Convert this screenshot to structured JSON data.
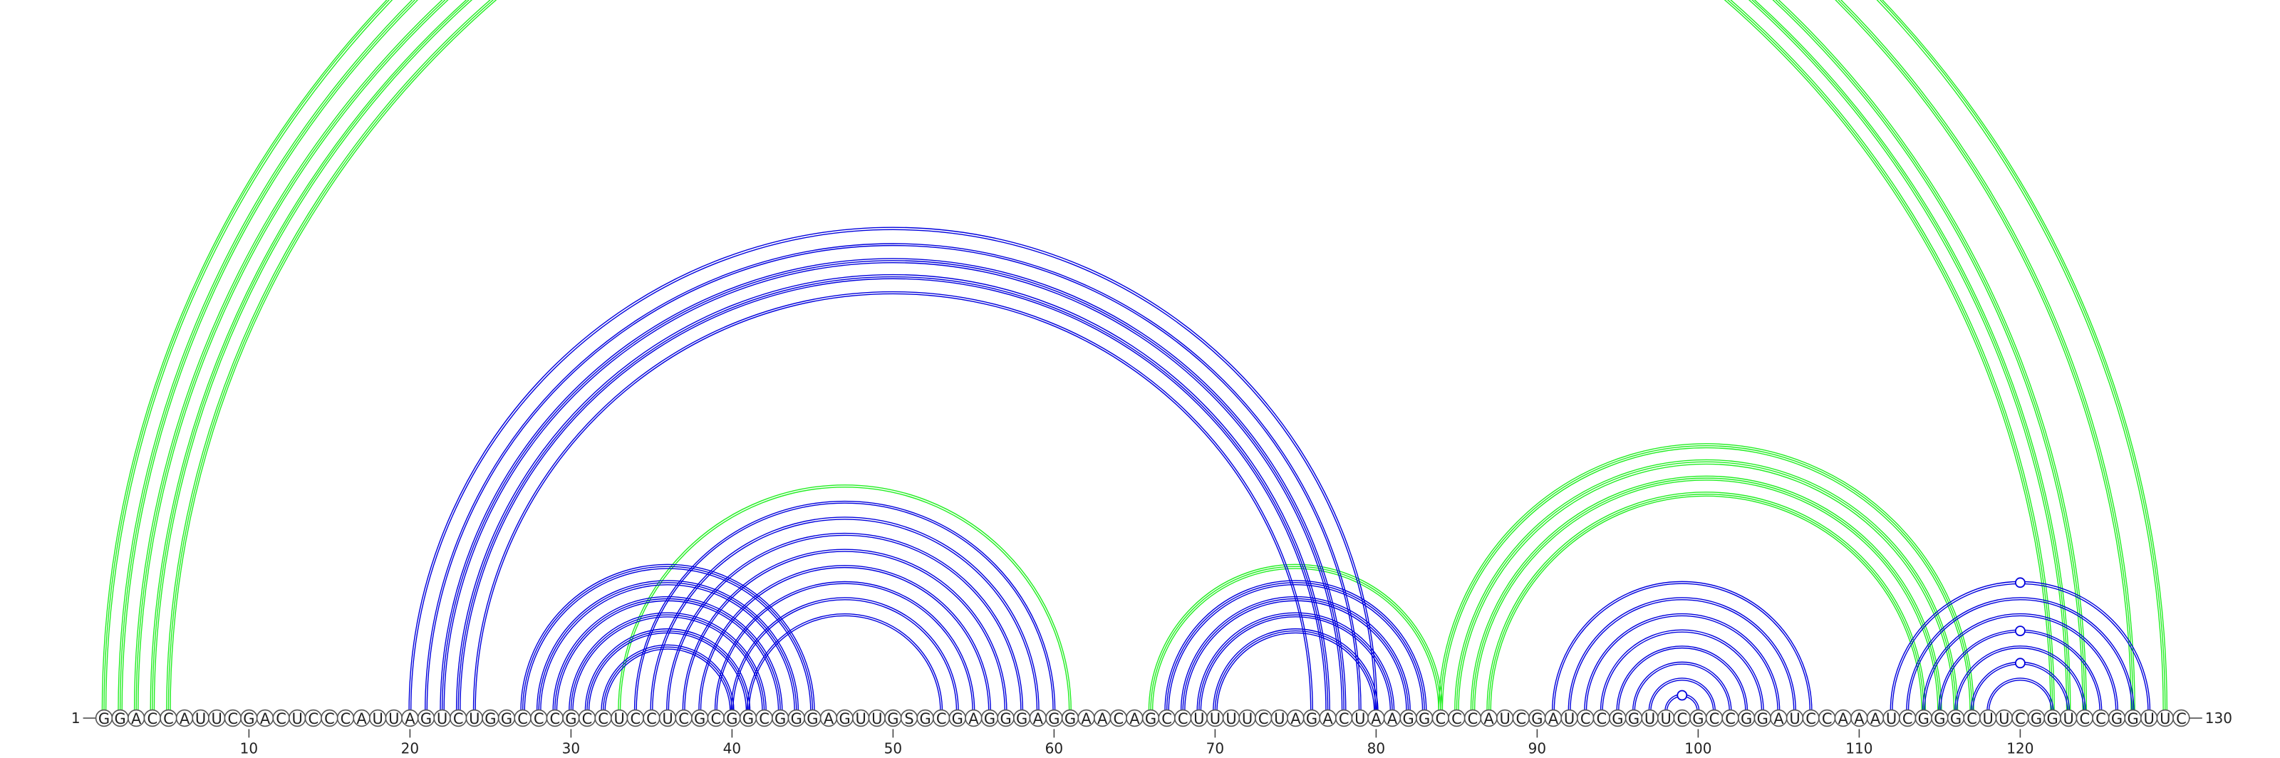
{
  "sequence": "GGACCAUUCGACUCCCAUUAGUCUGGCCCGCCUCCUCGCGGCGGGAGUUGSGCGAGGGAGGAACAGCCUUUUCUAGACUAAGGCCCAUCGAUCCGGUUCGCCGGAUCCAAAUCGGGCUUCGGUCCGGUUC",
  "start_label": "1",
  "end_label": "130",
  "ticks": [
    {
      "pos": 10,
      "label": "10"
    },
    {
      "pos": 20,
      "label": "20"
    },
    {
      "pos": 30,
      "label": "30"
    },
    {
      "pos": 40,
      "label": "40"
    },
    {
      "pos": 50,
      "label": "50"
    },
    {
      "pos": 60,
      "label": "60"
    },
    {
      "pos": 70,
      "label": "70"
    },
    {
      "pos": 80,
      "label": "80"
    },
    {
      "pos": 90,
      "label": "90"
    },
    {
      "pos": 100,
      "label": "100"
    },
    {
      "pos": 110,
      "label": "110"
    },
    {
      "pos": 120,
      "label": "120"
    }
  ],
  "colors": {
    "primary_arc": "#0000dd",
    "alternative_arc": "#22ee22",
    "backbone": "#555555"
  },
  "arcs": [
    {
      "i": 1,
      "j": 129,
      "set": "alternative",
      "bundle": 3
    },
    {
      "i": 2,
      "j": 127,
      "set": "alternative",
      "bundle": 3
    },
    {
      "i": 3,
      "j": 124,
      "set": "alternative",
      "bundle": 3
    },
    {
      "i": 4,
      "j": 123,
      "set": "alternative",
      "bundle": 3
    },
    {
      "i": 5,
      "j": 122,
      "set": "alternative",
      "bundle": 3
    },
    {
      "i": 33,
      "j": 61,
      "set": "alternative",
      "bundle": 2
    },
    {
      "i": 66,
      "j": 84,
      "set": "alternative",
      "bundle": 3
    },
    {
      "i": 84,
      "j": 117,
      "set": "alternative",
      "bundle": 3
    },
    {
      "i": 85,
      "j": 116,
      "set": "alternative",
      "bundle": 3
    },
    {
      "i": 86,
      "j": 115,
      "set": "alternative",
      "bundle": 3
    },
    {
      "i": 87,
      "j": 114,
      "set": "alternative",
      "bundle": 3
    },
    {
      "i": 20,
      "j": 80,
      "set": "primary",
      "bundle": 2
    },
    {
      "i": 21,
      "j": 79,
      "set": "primary",
      "bundle": 2
    },
    {
      "i": 22,
      "j": 78,
      "set": "primary",
      "bundle": 3
    },
    {
      "i": 23,
      "j": 77,
      "set": "primary",
      "bundle": 3
    },
    {
      "i": 24,
      "j": 76,
      "set": "primary",
      "bundle": 2
    },
    {
      "i": 27,
      "j": 45,
      "set": "primary",
      "bundle": 3
    },
    {
      "i": 28,
      "j": 44,
      "set": "primary",
      "bundle": 3
    },
    {
      "i": 29,
      "j": 43,
      "set": "primary",
      "bundle": 3
    },
    {
      "i": 30,
      "j": 42,
      "set": "primary",
      "bundle": 3
    },
    {
      "i": 31,
      "j": 41,
      "set": "primary",
      "bundle": 3
    },
    {
      "i": 32,
      "j": 40,
      "set": "primary",
      "bundle": 3
    },
    {
      "i": 34,
      "j": 60,
      "set": "primary",
      "bundle": 2
    },
    {
      "i": 35,
      "j": 59,
      "set": "primary",
      "bundle": 2
    },
    {
      "i": 36,
      "j": 58,
      "set": "primary",
      "bundle": 2
    },
    {
      "i": 37,
      "j": 57,
      "set": "primary",
      "bundle": 2
    },
    {
      "i": 38,
      "j": 56,
      "set": "primary",
      "bundle": 2
    },
    {
      "i": 39,
      "j": 55,
      "set": "primary",
      "bundle": 2
    },
    {
      "i": 40,
      "j": 54,
      "set": "primary",
      "bundle": 2
    },
    {
      "i": 41,
      "j": 53,
      "set": "primary",
      "bundle": 2
    },
    {
      "i": 67,
      "j": 83,
      "set": "primary",
      "bundle": 3
    },
    {
      "i": 68,
      "j": 82,
      "set": "primary",
      "bundle": 3
    },
    {
      "i": 69,
      "j": 81,
      "set": "primary",
      "bundle": 3
    },
    {
      "i": 70,
      "j": 80,
      "set": "primary",
      "bundle": 3
    },
    {
      "i": 91,
      "j": 107,
      "set": "primary",
      "bundle": 2
    },
    {
      "i": 92,
      "j": 106,
      "set": "primary",
      "bundle": 2
    },
    {
      "i": 93,
      "j": 105,
      "set": "primary",
      "bundle": 2
    },
    {
      "i": 94,
      "j": 104,
      "set": "primary",
      "bundle": 2
    },
    {
      "i": 95,
      "j": 103,
      "set": "primary",
      "bundle": 2
    },
    {
      "i": 96,
      "j": 102,
      "set": "primary",
      "bundle": 2
    },
    {
      "i": 97,
      "j": 101,
      "set": "primary",
      "bundle": 2
    },
    {
      "i": 98,
      "j": 100,
      "set": "primary",
      "bundle": 2
    },
    {
      "i": 112,
      "j": 128,
      "set": "primary",
      "bundle": 2
    },
    {
      "i": 113,
      "j": 127,
      "set": "primary",
      "bundle": 2
    },
    {
      "i": 114,
      "j": 126,
      "set": "primary",
      "bundle": 2
    },
    {
      "i": 115,
      "j": 125,
      "set": "primary",
      "bundle": 2
    },
    {
      "i": 116,
      "j": 124,
      "set": "primary",
      "bundle": 2
    },
    {
      "i": 117,
      "j": 123,
      "set": "primary",
      "bundle": 2
    },
    {
      "i": 118,
      "j": 122,
      "set": "primary",
      "bundle": 2
    }
  ],
  "apex_markers": [
    {
      "i": 1,
      "j": 129,
      "set": "alternative"
    },
    {
      "i": 98,
      "j": 100,
      "set": "primary"
    },
    {
      "i": 112,
      "j": 128,
      "set": "primary"
    },
    {
      "i": 115,
      "j": 125,
      "set": "primary"
    },
    {
      "i": 117,
      "j": 123,
      "set": "primary"
    }
  ]
}
